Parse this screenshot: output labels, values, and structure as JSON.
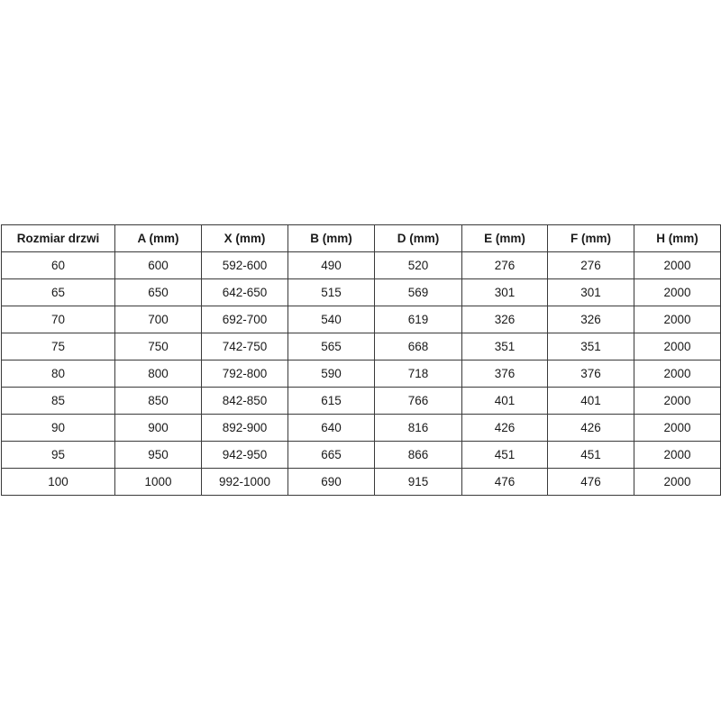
{
  "table": {
    "headers": [
      "Rozmiar drzwi",
      "A (mm)",
      "X (mm)",
      "B (mm)",
      "D (mm)",
      "E (mm)",
      "F (mm)",
      "H (mm)"
    ],
    "rows": [
      [
        "60",
        "600",
        "592-600",
        "490",
        "520",
        "276",
        "276",
        "2000"
      ],
      [
        "65",
        "650",
        "642-650",
        "515",
        "569",
        "301",
        "301",
        "2000"
      ],
      [
        "70",
        "700",
        "692-700",
        "540",
        "619",
        "326",
        "326",
        "2000"
      ],
      [
        "75",
        "750",
        "742-750",
        "565",
        "668",
        "351",
        "351",
        "2000"
      ],
      [
        "80",
        "800",
        "792-800",
        "590",
        "718",
        "376",
        "376",
        "2000"
      ],
      [
        "85",
        "850",
        "842-850",
        "615",
        "766",
        "401",
        "401",
        "2000"
      ],
      [
        "90",
        "900",
        "892-900",
        "640",
        "816",
        "426",
        "426",
        "2000"
      ],
      [
        "95",
        "950",
        "942-950",
        "665",
        "866",
        "451",
        "451",
        "2000"
      ],
      [
        "100",
        "1000",
        "992-1000",
        "690",
        "915",
        "476",
        "476",
        "2000"
      ]
    ]
  }
}
